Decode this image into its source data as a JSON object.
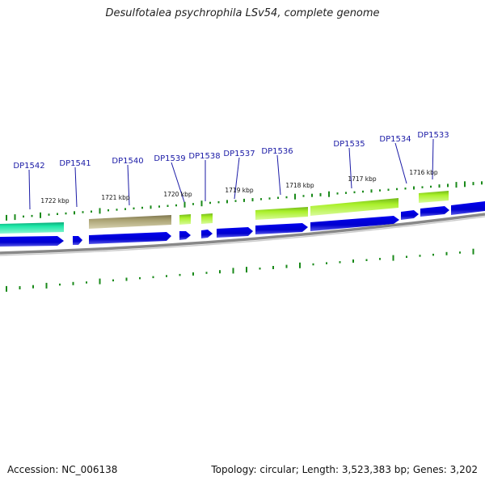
{
  "title": "Desulfotalea psychrophila LSv54, complete genome",
  "footer": {
    "accession": "Accession: NC_006138",
    "summary": "Topology: circular; Length: 3,523,383 bp; Genes: 3,202"
  },
  "colors": {
    "forward_cds": "#0000dd",
    "reverse_teal": "#1ee8a8",
    "reverse_olive": "#a8a070",
    "reverse_lime": "#aaf02a",
    "backbone": "#888888",
    "ticks": "#1a8a1a",
    "gene_label": "#1a1aa6"
  },
  "gene_labels": [
    "DP1542",
    "DP1541",
    "DP1540",
    "DP1539",
    "DP1538",
    "DP1537",
    "DP1536",
    "DP1535",
    "DP1534",
    "DP1533"
  ],
  "kbp_labels": [
    "1722 kbp",
    "1721 kbp",
    "1720 kbp",
    "1719 kbp",
    "1718 kbp",
    "1717 kbp",
    "1716 kbp"
  ]
}
